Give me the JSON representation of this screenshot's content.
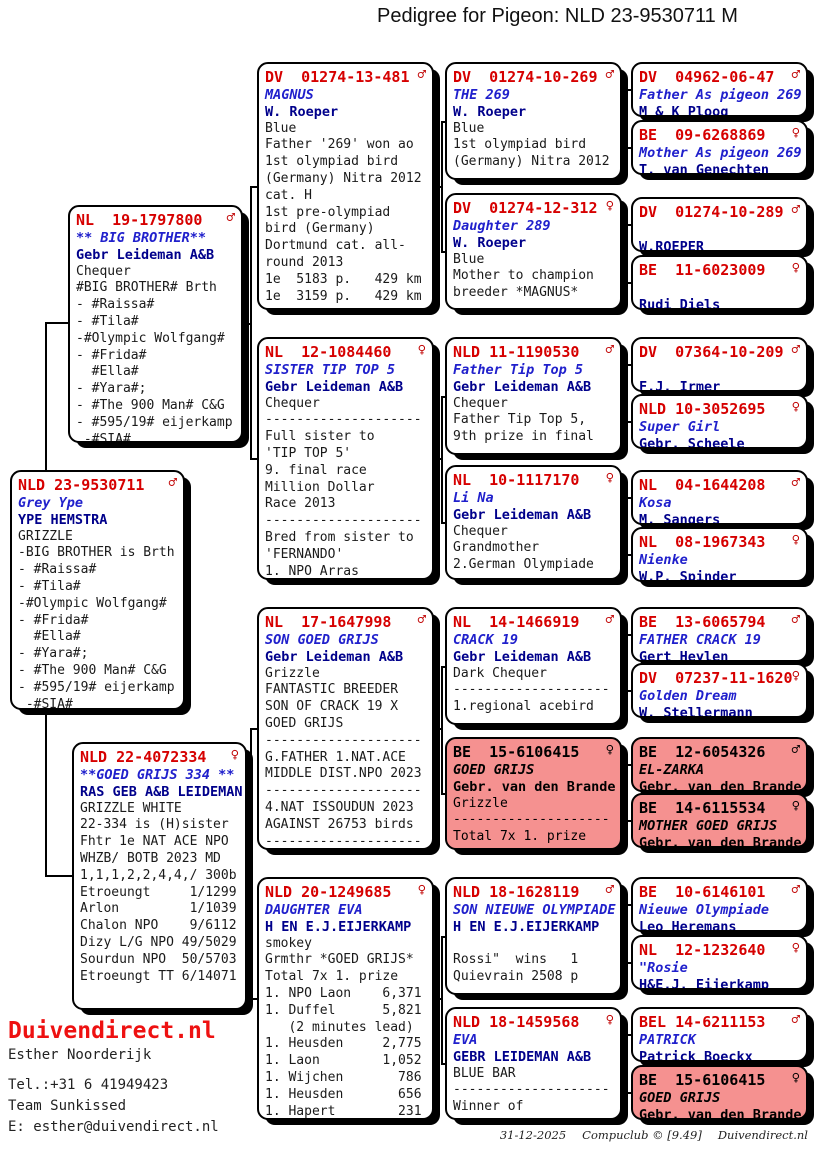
{
  "title": "Pedigree for Pigeon: NLD 23-9530711 M",
  "symbols": {
    "male": "♂",
    "female": "♀"
  },
  "colors": {
    "ring_red": "#d60000",
    "name_blue": "#2020cc",
    "breeder_navy": "#00008b",
    "highlight_pink": "#f59190"
  },
  "boxes": [
    {
      "id": "sire",
      "ring": "NL  19-1797800",
      "sex": "m",
      "name": "** BIG BROTHER**",
      "breeder": "Gebr Leideman A&B",
      "highlight": false,
      "lines": [
        "Chequer",
        "#BIG BROTHER# Brth",
        "- #Raissa#",
        "- #Tila#",
        "-#Olympic Wolfgang#",
        "- #Frida#",
        "  #Ella#",
        "- #Yara#;",
        "- #The 900 Man# C&G",
        "- #595/19# eijerkamp",
        " -#SIA#"
      ]
    },
    {
      "id": "subject",
      "ring": "NLD 23-9530711",
      "sex": "m",
      "name": "Grey Ype",
      "breeder": "YPE HEMSTRA",
      "highlight": false,
      "lines": [
        "GRIZZLE",
        "-BIG BROTHER is Brth",
        "- #Raissa#",
        "- #Tila#",
        "-#Olympic Wolfgang#",
        "- #Frida#",
        "  #Ella#",
        "- #Yara#;",
        "- #The 900 Man# C&G",
        "- #595/19# eijerkamp",
        " -#SIA#"
      ]
    },
    {
      "id": "dam",
      "ring": "NLD 22-4072334",
      "sex": "f",
      "name": "**GOED GRIJS 334 **",
      "breeder": "RAS GEB A&B LEIDEMAN",
      "highlight": false,
      "lines": [
        "GRIZZLE WHITE",
        "22-334 is (H)sister",
        "Fhtr 1e NAT ACE NPO",
        "WHZB/ BOTB 2023 MD",
        "1,1,1,2,2,4,4,/ 300b",
        "Etroeungt     1/1299",
        "Arlon         1/1039",
        "Chalon NPO    9/6112",
        "Dizy L/G NPO 49/5029",
        "Sourdun NPO  50/5703",
        "Etroeungt TT 6/14071"
      ]
    },
    {
      "id": "ff",
      "ring": "DV  01274-13-481",
      "sex": "m",
      "name": "MAGNUS",
      "breeder": "W. Roeper",
      "highlight": false,
      "lines": [
        "Blue",
        "Father '269' won ao",
        "1st olympiad bird",
        "(Germany) Nitra 2012",
        "cat. H",
        "1st pre-olympiad",
        "bird (Germany)",
        "Dortmund cat. all-",
        "round 2013",
        "1e  5183 p.   429 km",
        "1e  3159 p.   429 km"
      ]
    },
    {
      "id": "fm",
      "ring": "NL  12-1084460",
      "sex": "f",
      "name": "SISTER TIP TOP 5",
      "breeder": "Gebr Leideman A&B",
      "highlight": false,
      "lines": [
        "Chequer",
        "--------------------",
        "Full sister to",
        "'TIP TOP 5'",
        "9. final race",
        "Million Dollar",
        "Race 2013",
        "--------------------",
        "Bred from sister to",
        "'FERNANDO'",
        "1. NPO Arras"
      ]
    },
    {
      "id": "mf",
      "ring": "NL  17-1647998",
      "sex": "m",
      "name": "SON GOED GRIJS",
      "breeder": "Gebr Leideman A&B",
      "highlight": false,
      "lines": [
        "Grizzle",
        "FANTASTIC BREEDER",
        "SON OF CRACK 19 X",
        "GOED GRIJS",
        "--------------------",
        "G.FATHER 1.NAT.ACE",
        "MIDDLE DIST.NPO 2023",
        "--------------------",
        "4.NAT ISSOUDUN 2023",
        "AGAINST 26753 birds",
        "--------------------"
      ]
    },
    {
      "id": "mm",
      "ring": "NLD 20-1249685",
      "sex": "f",
      "name": "DAUGHTER EVA",
      "breeder": "H EN E.J.EIJERKAMP",
      "highlight": false,
      "lines": [
        "smokey",
        "Grmthr *GOED GRIJS*",
        "Total 7x 1. prize",
        "1. NPO Laon    6,371",
        "1. Duffel      5,821",
        "   (2 minutes lead)",
        "1. Heusden     2,775",
        "1. Laon        1,052",
        "1. Wijchen       786",
        "1. Heusden       656",
        "1. Hapert        231"
      ]
    },
    {
      "id": "fff",
      "ring": "DV  01274-10-269",
      "sex": "m",
      "name": "THE 269",
      "breeder": "W. Roeper",
      "highlight": false,
      "lines": [
        "Blue",
        "1st olympiad bird",
        "(Germany) Nitra 2012"
      ]
    },
    {
      "id": "ffm",
      "ring": "DV  01274-12-312",
      "sex": "f",
      "name": "Daughter 289",
      "breeder": "W. Roeper",
      "highlight": false,
      "lines": [
        "Blue",
        "Mother to champion",
        "breeder *MAGNUS*"
      ]
    },
    {
      "id": "fmf",
      "ring": "NLD 11-1190530",
      "sex": "m",
      "name": "Father Tip Top 5",
      "breeder": "Gebr Leideman A&B",
      "highlight": false,
      "lines": [
        "Chequer",
        "Father Tip Top 5,",
        "9th prize in final"
      ]
    },
    {
      "id": "fmm",
      "ring": "NL  10-1117170",
      "sex": "f",
      "name": "Li Na",
      "breeder": "Gebr Leideman A&B",
      "highlight": false,
      "lines": [
        "Chequer",
        "Grandmother",
        "2.German Olympiade"
      ]
    },
    {
      "id": "mff",
      "ring": "NL  14-1466919",
      "sex": "m",
      "name": "CRACK 19",
      "breeder": "Gebr Leideman A&B",
      "highlight": false,
      "lines": [
        "Dark Chequer",
        "--------------------",
        "1.regional acebird"
      ]
    },
    {
      "id": "mfm",
      "ring": "BE  15-6106415",
      "sex": "f",
      "name": "GOED GRIJS",
      "breeder": "Gebr. van den Brande",
      "highlight": true,
      "lines": [
        "Grizzle",
        "--------------------",
        "Total 7x 1. prize"
      ]
    },
    {
      "id": "mmf",
      "ring": "NLD 18-1628119",
      "sex": "m",
      "name": "SON NIEUWE OLYMPIADE",
      "breeder": "H EN E.J.EIJERKAMP",
      "highlight": false,
      "lines": [
        "",
        "Rossi\"  wins   1",
        "Quievrain 2508 p"
      ]
    },
    {
      "id": "mmm",
      "ring": "NLD 18-1459568",
      "sex": "f",
      "name": "EVA",
      "breeder": "GEBR LEIDEMAN A&B",
      "highlight": false,
      "lines": [
        "BLUE BAR",
        "--------------------",
        "Winner of"
      ]
    },
    {
      "id": "ffff",
      "ring": "DV  04962-06-47",
      "sex": "m",
      "name": "Father As pigeon 269",
      "breeder": "M & K Ploog",
      "highlight": false,
      "lines": []
    },
    {
      "id": "fffm",
      "ring": "BE  09-6268869",
      "sex": "f",
      "name": "Mother As pigeon 269",
      "breeder": "T. van Genechten",
      "highlight": false,
      "lines": []
    },
    {
      "id": "ffmf",
      "ring": "DV  01274-10-289",
      "sex": "m",
      "name": "",
      "breeder": "W.ROEPER",
      "highlight": false,
      "lines": []
    },
    {
      "id": "ffmm",
      "ring": "BE  11-6023009",
      "sex": "f",
      "name": "",
      "breeder": "Rudi Diels",
      "highlight": false,
      "lines": []
    },
    {
      "id": "fmff",
      "ring": "DV  07364-10-209",
      "sex": "m",
      "name": "",
      "breeder": "F.J. Irmer",
      "highlight": false,
      "lines": []
    },
    {
      "id": "fmfm",
      "ring": "NLD 10-3052695",
      "sex": "f",
      "name": "Super Girl",
      "breeder": "Gebr. Scheele",
      "highlight": false,
      "lines": []
    },
    {
      "id": "fmmf",
      "ring": "NL  04-1644208",
      "sex": "m",
      "name": "Kosa",
      "breeder": "M. Sangers",
      "highlight": false,
      "lines": []
    },
    {
      "id": "fmmm",
      "ring": "NL  08-1967343",
      "sex": "f",
      "name": "Nienke",
      "breeder": "W.P. Spinder",
      "highlight": false,
      "lines": []
    },
    {
      "id": "mfff",
      "ring": "BE  13-6065794",
      "sex": "m",
      "name": "FATHER CRACK 19",
      "breeder": "Gert Heylen",
      "highlight": false,
      "lines": []
    },
    {
      "id": "mffm",
      "ring": "DV  07237-11-1620",
      "sex": "f",
      "name": "Golden Dream",
      "breeder": "W. Stellermann",
      "highlight": false,
      "lines": []
    },
    {
      "id": "mfmf",
      "ring": "BE  12-6054326",
      "sex": "m",
      "name": "EL-ZARKA",
      "breeder": "Gebr. van den Brande",
      "highlight": true,
      "lines": []
    },
    {
      "id": "mfmm",
      "ring": "BE  14-6115534",
      "sex": "f",
      "name": "MOTHER GOED GRIJS",
      "breeder": "Gebr. van den Brande",
      "highlight": true,
      "lines": []
    },
    {
      "id": "mmff",
      "ring": "BE  10-6146101",
      "sex": "m",
      "name": "Nieuwe Olympiade",
      "breeder": "Leo Heremans",
      "highlight": false,
      "lines": []
    },
    {
      "id": "mmfm",
      "ring": "NL  12-1232640",
      "sex": "f",
      "name": "\"Rosie",
      "breeder": "H&E.J. Eijerkamp",
      "highlight": false,
      "lines": []
    },
    {
      "id": "mmmf",
      "ring": "BEL 14-6211153",
      "sex": "m",
      "name": "PATRICK",
      "breeder": "Patrick Boeckx",
      "highlight": false,
      "lines": []
    },
    {
      "id": "mmmm",
      "ring": "BE  15-6106415",
      "sex": "f",
      "name": "GOED GRIJS",
      "breeder": "Gebr. van den Brande",
      "highlight": true,
      "lines": []
    }
  ],
  "footer": {
    "brand": "Duivendirect.nl",
    "owner": "Esther Noorderijk",
    "phone": "Tel.:+31 6 41949423",
    "team": "Team Sunkissed",
    "email": "E: esther@duivendirect.nl"
  },
  "footnote": {
    "date": "31-12-2025",
    "app": "Compuclub © [9.49]",
    "site": "Duivendirect.nl"
  }
}
